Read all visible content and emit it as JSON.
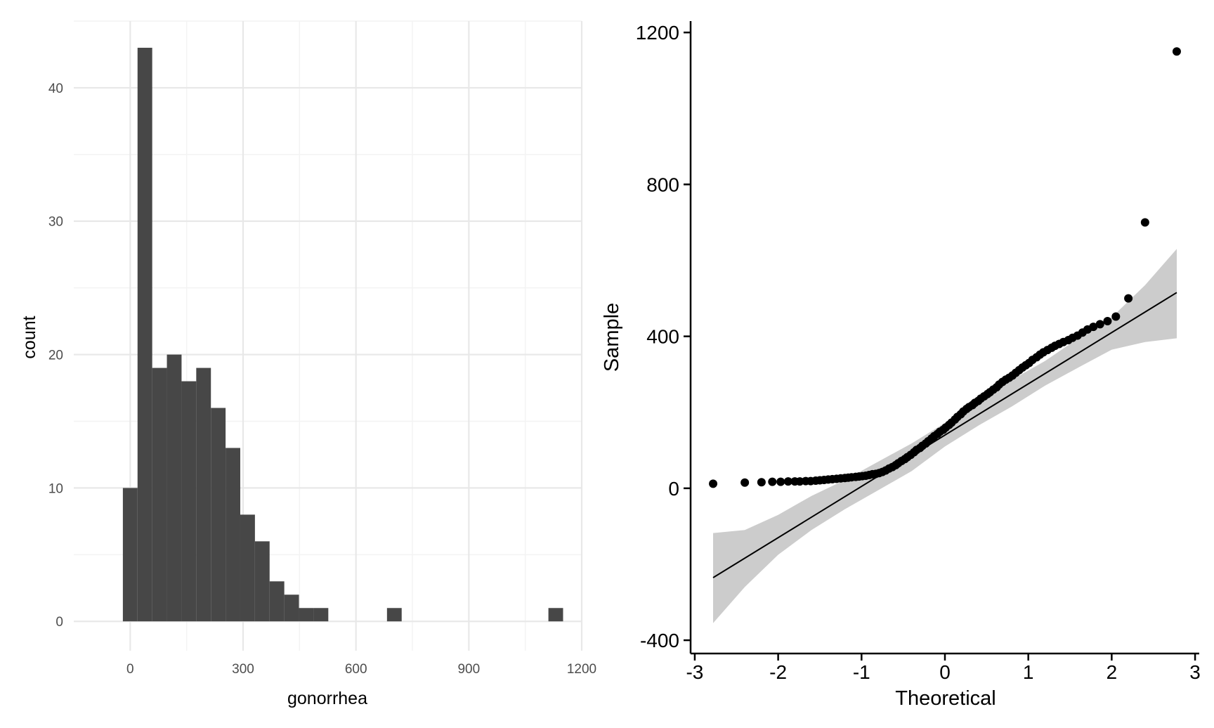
{
  "chart_data": [
    {
      "type": "bar",
      "subtype": "histogram",
      "title": "",
      "xlabel": "gonorrhea",
      "ylabel": "count",
      "bin_width": 39,
      "bins": [
        {
          "x0": -19.5,
          "x1": 19.5,
          "count": 10
        },
        {
          "x0": 19.5,
          "x1": 58.5,
          "count": 43
        },
        {
          "x0": 58.5,
          "x1": 97.5,
          "count": 19
        },
        {
          "x0": 97.5,
          "x1": 136.5,
          "count": 20
        },
        {
          "x0": 136.5,
          "x1": 175.5,
          "count": 18
        },
        {
          "x0": 175.5,
          "x1": 214.5,
          "count": 19
        },
        {
          "x0": 214.5,
          "x1": 253.5,
          "count": 16
        },
        {
          "x0": 253.5,
          "x1": 292.5,
          "count": 13
        },
        {
          "x0": 292.5,
          "x1": 331.5,
          "count": 8
        },
        {
          "x0": 331.5,
          "x1": 370.5,
          "count": 6
        },
        {
          "x0": 370.5,
          "x1": 409.5,
          "count": 3
        },
        {
          "x0": 409.5,
          "x1": 448.5,
          "count": 2
        },
        {
          "x0": 448.5,
          "x1": 487.5,
          "count": 1
        },
        {
          "x0": 487.5,
          "x1": 526.5,
          "count": 1
        },
        {
          "x0": 682.5,
          "x1": 721.5,
          "count": 1
        },
        {
          "x0": 1111.5,
          "x1": 1150.5,
          "count": 1
        }
      ],
      "xlim": [
        -150,
        1200
      ],
      "ylim": [
        -2.2,
        45
      ],
      "xticks": [
        0,
        300,
        600,
        900,
        1200
      ],
      "xtick_labels": [
        "0",
        "300",
        "600",
        "900",
        "1200"
      ],
      "yticks": [
        0,
        10,
        20,
        30,
        40
      ],
      "ytick_labels": [
        "0",
        "10",
        "20",
        "30",
        "40"
      ],
      "grid": true,
      "colors": {
        "bar": "#474747",
        "grid_major": "#e8e8e8",
        "grid_minor": "#f3f3f3"
      }
    },
    {
      "type": "scatter",
      "subtype": "qq-plot",
      "title": "",
      "xlabel": "Theoretical",
      "ylabel": "Sample",
      "xlim": [
        -3.05,
        3.05
      ],
      "ylim": [
        -435,
        1230
      ],
      "xticks": [
        -3,
        -2,
        -1,
        0,
        1,
        2,
        3
      ],
      "xtick_labels": [
        "-3",
        "-2",
        "-1",
        "0",
        "1",
        "2",
        "3"
      ],
      "yticks": [
        -400,
        0,
        400,
        800,
        1200
      ],
      "ytick_labels": [
        "-400",
        "0",
        "400",
        "800",
        "1200"
      ],
      "grid": false,
      "reference_line": {
        "intercept": 140,
        "slope": 135
      },
      "confidence_band": {
        "x": [
          -2.78,
          -2.4,
          -2.0,
          -1.6,
          -1.2,
          -0.8,
          -0.4,
          0.0,
          0.4,
          0.8,
          1.2,
          1.6,
          2.0,
          2.4,
          2.78
        ],
        "lower": [
          -355,
          -260,
          -175,
          -110,
          -55,
          -5,
          45,
          110,
          165,
          215,
          270,
          318,
          365,
          385,
          395
        ],
        "upper": [
          -118,
          -110,
          -70,
          -20,
          22,
          70,
          118,
          172,
          225,
          285,
          335,
          395,
          450,
          535,
          630
        ]
      },
      "points": {
        "x": [
          -2.78,
          -2.4,
          -2.2,
          -2.07,
          -1.97,
          -1.88,
          -1.8,
          -1.74,
          -1.67,
          -1.61,
          -1.55,
          -1.5,
          -1.45,
          -1.4,
          -1.35,
          -1.3,
          -1.25,
          -1.2,
          -1.16,
          -1.12,
          -1.07,
          -1.03,
          -0.99,
          -0.95,
          -0.91,
          -0.87,
          -0.83,
          -0.79,
          -0.75,
          -0.71,
          -0.67,
          -0.63,
          -0.59,
          -0.56,
          -0.52,
          -0.48,
          -0.45,
          -0.41,
          -0.37,
          -0.34,
          -0.3,
          -0.27,
          -0.23,
          -0.2,
          -0.16,
          -0.13,
          -0.09,
          -0.06,
          -0.02,
          0.01,
          0.05,
          0.08,
          0.12,
          0.15,
          0.19,
          0.22,
          0.26,
          0.29,
          0.33,
          0.36,
          0.4,
          0.43,
          0.47,
          0.51,
          0.54,
          0.58,
          0.62,
          0.65,
          0.69,
          0.73,
          0.77,
          0.81,
          0.85,
          0.89,
          0.93,
          0.97,
          1.01,
          1.05,
          1.1,
          1.14,
          1.18,
          1.23,
          1.28,
          1.32,
          1.37,
          1.42,
          1.48,
          1.53,
          1.59,
          1.65,
          1.71,
          1.78,
          1.86,
          1.95,
          2.05,
          2.2,
          2.4,
          2.78
        ],
        "y": [
          12,
          15,
          16,
          17,
          17,
          18,
          18,
          18,
          19,
          19,
          20,
          21,
          22,
          23,
          24,
          25,
          26,
          27,
          28,
          29,
          30,
          31,
          32,
          33,
          35,
          37,
          38,
          40,
          43,
          47,
          52,
          56,
          61,
          66,
          72,
          77,
          82,
          88,
          95,
          101,
          106,
          112,
          118,
          124,
          131,
          137,
          143,
          149,
          154,
          160,
          167,
          173,
          181,
          188,
          195,
          202,
          209,
          214,
          219,
          225,
          230,
          236,
          242,
          248,
          253,
          260,
          266,
          273,
          280,
          286,
          291,
          297,
          304,
          311,
          318,
          324,
          330,
          338,
          345,
          352,
          358,
          364,
          370,
          375,
          380,
          385,
          390,
          396,
          402,
          410,
          418,
          425,
          432,
          440,
          452,
          500,
          700,
          1150
        ]
      },
      "colors": {
        "point": "#000000",
        "band": "#cccccc",
        "line": "#000000"
      }
    }
  ]
}
